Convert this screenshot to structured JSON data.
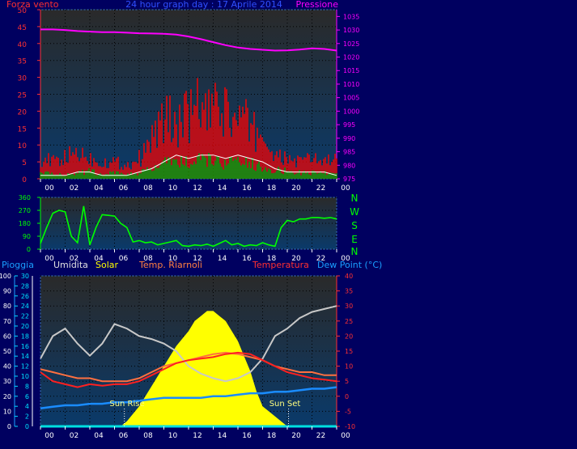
{
  "header": {
    "left_label": "Forza vento",
    "title": "24 hour graph day : 17 Aprile 2014",
    "right_label": "Pressione"
  },
  "wind_dir_axis_labels": [
    "N",
    "W",
    "S",
    "E",
    "N"
  ],
  "legend": {
    "pioggia": "Pioggia",
    "umidita": "Umidita",
    "solar": "Solar",
    "temp_riarnoli": "Temp. Riarnoli",
    "temperatura": "Temperatura",
    "dew_point": "Dew Point (°C)"
  },
  "annotations": {
    "sun_rise": "Sun Rise",
    "sun_set": "Sun Set"
  },
  "colors": {
    "background": "#000060",
    "plot_top": "#2a2a2a",
    "plot_bottom": "#0a3a6a",
    "wind_gust": "#ff0000",
    "wind_avg": "#00aa00",
    "wind_white": "#ffffff",
    "pressure": "#ff00ff",
    "wind_dir": "#00ff00",
    "humidity": "#c8c8c8",
    "solar": "#ffff00",
    "temp_riarnoli": "#ff7040",
    "temperatura": "#ff2020",
    "dew_point": "#1a8cff",
    "rain": "#00e0e0"
  },
  "chart_data": [
    {
      "type": "line",
      "title": "24 hour graph day : 17 Aprile 2014",
      "x_tick_labels": [
        "00",
        "02",
        "04",
        "06",
        "08",
        "10",
        "12",
        "14",
        "16",
        "18",
        "20",
        "22",
        "00"
      ],
      "x_hours": [
        0,
        24
      ],
      "y_left_label": "Forza vento",
      "y_left_ticks": [
        0,
        5,
        10,
        15,
        20,
        25,
        30,
        35,
        40,
        45,
        50
      ],
      "y_left_range": [
        0,
        50
      ],
      "y_right_label": "Pressione",
      "y_right_ticks": [
        975,
        980,
        985,
        990,
        995,
        1000,
        1005,
        1010,
        1015,
        1020,
        1025,
        1030,
        1035
      ],
      "y_right_range": [
        975,
        1037.5
      ],
      "series": [
        {
          "name": "Pressione",
          "hours": [
            0,
            1,
            2,
            3,
            4,
            5,
            6,
            7,
            8,
            9,
            10,
            11,
            12,
            13,
            14,
            15,
            16,
            17,
            18,
            19,
            20,
            21,
            22,
            23,
            24
          ],
          "values": [
            1030.2,
            1030.2,
            1030.0,
            1029.6,
            1029.4,
            1029.2,
            1029.2,
            1029.0,
            1028.8,
            1028.7,
            1028.6,
            1028.3,
            1027.6,
            1026.6,
            1025.5,
            1024.4,
            1023.5,
            1023.0,
            1022.7,
            1022.4,
            1022.5,
            1022.8,
            1023.2,
            1023.0,
            1022.4
          ]
        },
        {
          "name": "Raffica",
          "hours": [
            0,
            1,
            2,
            3,
            4,
            5,
            6,
            7,
            8,
            8.5,
            9,
            9.5,
            10,
            10.5,
            11,
            11.5,
            12,
            12.5,
            13,
            13.5,
            14,
            14.5,
            15,
            15.5,
            16,
            16.5,
            17,
            17.5,
            18,
            18.5,
            19,
            20,
            21,
            22,
            23,
            24
          ],
          "values": [
            6,
            5,
            6,
            8,
            6,
            5,
            5,
            4,
            6,
            8,
            12,
            15,
            17,
            18,
            16,
            17,
            19,
            20,
            22,
            18,
            20,
            19,
            21,
            16,
            18,
            17,
            15,
            14,
            12,
            10,
            6,
            6,
            5,
            6,
            5,
            6
          ]
        },
        {
          "name": "Media",
          "hours": [
            0,
            1,
            2,
            3,
            4,
            5,
            6,
            7,
            8,
            9,
            10,
            11,
            12,
            13,
            14,
            15,
            16,
            17,
            18,
            19,
            20,
            21,
            22,
            23,
            24
          ],
          "values": [
            2,
            1.5,
            1.5,
            2,
            2.5,
            1.5,
            2,
            1.5,
            2,
            3,
            5,
            6,
            5,
            6,
            6,
            5,
            5.5,
            5,
            4,
            3,
            2.5,
            2,
            2,
            2,
            2
          ]
        },
        {
          "name": "Vento",
          "hours": [
            0,
            1,
            2,
            3,
            4,
            5,
            6,
            7,
            8,
            9,
            10,
            11,
            12,
            13,
            14,
            15,
            16,
            17,
            18,
            19,
            20,
            21,
            22,
            23,
            24
          ],
          "values": [
            1,
            1,
            1,
            2,
            2,
            1,
            1,
            1,
            2,
            3,
            5,
            7,
            6,
            7,
            7,
            6,
            7,
            6,
            5,
            3,
            2,
            2,
            2,
            2,
            1
          ]
        }
      ]
    },
    {
      "type": "line",
      "x_tick_labels": [
        "00",
        "02",
        "04",
        "06",
        "08",
        "10",
        "12",
        "14",
        "16",
        "18",
        "20",
        "22",
        "00"
      ],
      "y_ticks": [
        0,
        90,
        180,
        270,
        360
      ],
      "y_range": [
        0,
        360
      ],
      "series": [
        {
          "name": "Direzione vento",
          "hours": [
            0,
            0.5,
            1,
            1.5,
            2,
            2.5,
            3,
            3.5,
            4,
            4.5,
            5,
            5.5,
            6,
            6.5,
            7,
            7.5,
            8,
            8.5,
            9,
            9.5,
            10,
            10.5,
            11,
            11.5,
            12,
            12.5,
            13,
            13.5,
            14,
            14.5,
            15,
            15.5,
            16,
            16.5,
            17,
            17.5,
            18,
            18.5,
            19,
            19.5,
            20,
            20.5,
            21,
            21.5,
            22,
            22.5,
            23,
            23.5,
            24
          ],
          "values": [
            40,
            150,
            250,
            270,
            260,
            90,
            45,
            300,
            30,
            150,
            240,
            235,
            230,
            180,
            150,
            50,
            60,
            45,
            50,
            30,
            40,
            50,
            60,
            25,
            20,
            30,
            25,
            35,
            20,
            40,
            60,
            30,
            40,
            20,
            30,
            25,
            45,
            30,
            20,
            150,
            200,
            190,
            210,
            210,
            220,
            220,
            215,
            220,
            210
          ]
        }
      ]
    },
    {
      "type": "line",
      "x_tick_labels": [
        "00",
        "02",
        "04",
        "06",
        "08",
        "10",
        "12",
        "14",
        "16",
        "18",
        "20",
        "22",
        "00"
      ],
      "y_axes": [
        {
          "label": "Pioggia",
          "ticks": [
            0,
            10,
            20,
            30,
            40,
            50,
            60,
            70,
            80,
            90,
            100
          ],
          "range": [
            0,
            100
          ]
        },
        {
          "label": "Solar",
          "ticks": [
            0,
            2,
            4,
            6,
            8,
            10,
            12,
            14,
            16,
            18,
            20,
            22,
            24,
            26,
            28,
            30
          ],
          "range": [
            0,
            30
          ]
        },
        {
          "label": "Temperatura",
          "ticks": [
            -10,
            -5,
            0,
            5,
            10,
            15,
            20,
            25,
            30,
            35,
            40
          ],
          "range": [
            -10,
            40
          ]
        }
      ],
      "series": [
        {
          "name": "Umidita",
          "hours": [
            0,
            1,
            2,
            3,
            4,
            5,
            6,
            7,
            8,
            9,
            10,
            11,
            12,
            13,
            14,
            15,
            16,
            17,
            18,
            19,
            20,
            21,
            22,
            23,
            24
          ],
          "values": [
            45,
            60,
            65,
            55,
            47,
            55,
            68,
            65,
            60,
            58,
            55,
            50,
            40,
            35,
            32,
            30,
            32,
            36,
            45,
            60,
            65,
            72,
            76,
            78,
            80
          ]
        },
        {
          "name": "Temp. Riarnoli",
          "hours": [
            0,
            1,
            2,
            3,
            4,
            5,
            6,
            7,
            8,
            9,
            10,
            11,
            12,
            13,
            14,
            15,
            16,
            17,
            18,
            19,
            20,
            21,
            22,
            23,
            24
          ],
          "values": [
            9,
            8,
            7,
            6,
            6,
            5,
            5,
            5,
            6,
            8,
            10,
            11,
            12,
            13,
            14,
            14.5,
            14,
            13,
            12,
            10,
            9,
            8,
            8,
            7,
            7
          ]
        },
        {
          "name": "Temperatura",
          "hours": [
            0,
            1,
            2,
            3,
            4,
            5,
            6,
            7,
            8,
            9,
            10,
            11,
            12,
            13,
            14,
            15,
            16,
            17,
            18,
            19,
            20,
            21,
            22,
            23,
            24
          ],
          "values": [
            8,
            5,
            4,
            3,
            4,
            3.5,
            4,
            4,
            5,
            7,
            9,
            11,
            12,
            12.5,
            13,
            14,
            14.5,
            14,
            12,
            10,
            8,
            7,
            6,
            5.5,
            5
          ]
        },
        {
          "name": "Dew Point",
          "hours": [
            0,
            1,
            2,
            3,
            4,
            5,
            6,
            7,
            8,
            9,
            10,
            11,
            12,
            13,
            14,
            15,
            16,
            17,
            18,
            19,
            20,
            21,
            22,
            23,
            24
          ],
          "values": [
            -4,
            -3.5,
            -3,
            -3,
            -2.5,
            -2.5,
            -2,
            -2,
            -1.5,
            -1,
            -0.5,
            -0.5,
            -0.5,
            -0.5,
            0,
            0,
            0.5,
            1,
            1,
            1.5,
            1.5,
            2,
            2.5,
            2.5,
            3
          ]
        },
        {
          "name": "Solar",
          "hours": [
            0,
            6.5,
            7,
            8,
            9,
            10,
            11,
            12,
            12.5,
            13,
            13.5,
            14,
            14.5,
            15,
            15.5,
            16,
            16.5,
            17,
            17.5,
            18,
            19,
            20,
            24
          ],
          "values": [
            0,
            0,
            1,
            4,
            8,
            12,
            16,
            19,
            21,
            22,
            23,
            23,
            22,
            21,
            19,
            17,
            14,
            11,
            7,
            4,
            2,
            0,
            0
          ]
        },
        {
          "name": "Pioggia",
          "hours": [
            0,
            24
          ],
          "values": [
            0,
            0
          ]
        }
      ]
    }
  ]
}
